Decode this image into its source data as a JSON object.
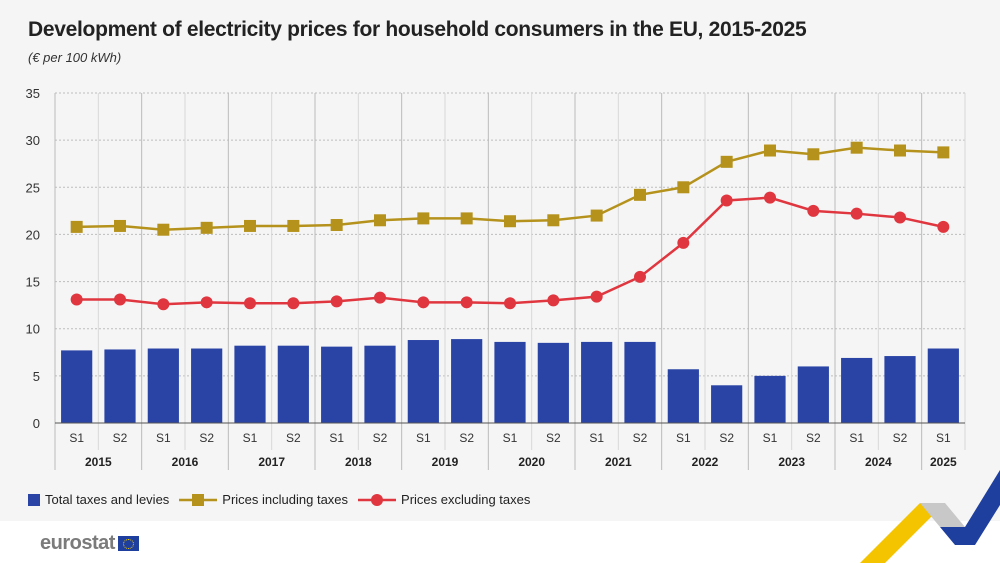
{
  "title": "Development of electricity prices for household consumers in the EU, 2015-2025",
  "subtitle": "(€ per 100 kWh)",
  "logo_text": "eurostat",
  "colors": {
    "bars": "#2a44a6",
    "incl": "#b5921c",
    "excl": "#e0363f",
    "background": "#f5f5f5"
  },
  "chart_data": {
    "type": "bar+line",
    "categories": [
      "S1",
      "S2",
      "S1",
      "S2",
      "S1",
      "S2",
      "S1",
      "S2",
      "S1",
      "S2",
      "S1",
      "S2",
      "S1",
      "S2",
      "S1",
      "S2",
      "S1",
      "S2",
      "S1",
      "S2",
      "S1"
    ],
    "years": [
      "2015",
      "2016",
      "2017",
      "2018",
      "2019",
      "2020",
      "2021",
      "2022",
      "2023",
      "2024",
      "2025"
    ],
    "ylim": [
      0,
      35
    ],
    "yticks": [
      0,
      5,
      10,
      15,
      20,
      25,
      30,
      35
    ],
    "grid": true,
    "legend_position": "bottom-left",
    "series": [
      {
        "name": "Total taxes and levies",
        "type": "bar",
        "values": [
          7.7,
          7.8,
          7.9,
          7.9,
          8.2,
          8.2,
          8.1,
          8.2,
          8.8,
          8.9,
          8.6,
          8.5,
          8.6,
          8.6,
          5.7,
          4.0,
          5.0,
          6.0,
          6.9,
          7.1,
          7.9
        ]
      },
      {
        "name": "Prices including taxes",
        "type": "line",
        "marker": "square",
        "values": [
          20.8,
          20.9,
          20.5,
          20.7,
          20.9,
          20.9,
          21.0,
          21.5,
          21.7,
          21.7,
          21.4,
          21.5,
          22.0,
          24.2,
          25.0,
          27.7,
          28.9,
          28.5,
          29.2,
          28.9,
          28.7
        ]
      },
      {
        "name": "Prices excluding taxes",
        "type": "line",
        "marker": "circle",
        "values": [
          13.1,
          13.1,
          12.6,
          12.8,
          12.7,
          12.7,
          12.9,
          13.3,
          12.8,
          12.8,
          12.7,
          13.0,
          13.4,
          15.5,
          19.1,
          23.6,
          23.9,
          22.5,
          22.2,
          21.8,
          20.8
        ]
      }
    ]
  }
}
